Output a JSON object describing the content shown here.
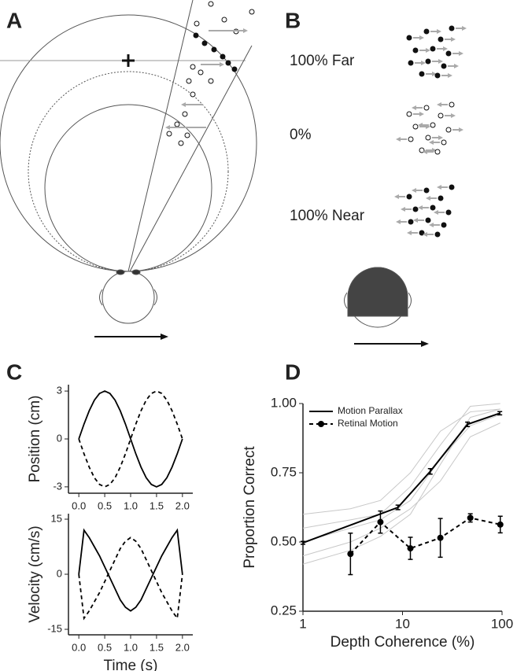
{
  "panel_labels": [
    "A",
    "B",
    "C",
    "D"
  ],
  "panel_b": {
    "conditions": [
      "100% Far",
      "0%",
      "100% Near"
    ]
  },
  "chart_data": [
    {
      "type": "line",
      "ylabel": "Position (cm)",
      "x": [
        0,
        0.1,
        0.2,
        0.3,
        0.4,
        0.5,
        0.6,
        0.7,
        0.8,
        0.9,
        1.0,
        1.1,
        1.2,
        1.3,
        1.4,
        1.5,
        1.6,
        1.7,
        1.8,
        1.9,
        2.0
      ],
      "series": [
        {
          "color": "#000000",
          "dash": "solid",
          "values": [
            0,
            0.93,
            1.76,
            2.43,
            2.85,
            3,
            2.85,
            2.43,
            1.76,
            0.93,
            0,
            -0.93,
            -1.76,
            -2.43,
            -2.85,
            -3,
            -2.85,
            -2.43,
            -1.76,
            -0.93,
            0
          ]
        },
        {
          "color": "#000000",
          "dash": "dashed",
          "values": [
            0,
            -0.93,
            -1.76,
            -2.43,
            -2.85,
            -3,
            -2.85,
            -2.43,
            -1.76,
            -0.93,
            0,
            0.93,
            1.76,
            2.43,
            2.85,
            3,
            2.85,
            2.43,
            1.76,
            0.93,
            0
          ]
        }
      ],
      "xlim": [
        -0.2,
        2.2
      ],
      "xticks": [
        {
          "value": 0,
          "label": "0.0"
        },
        {
          "value": 0.5,
          "label": "0.5"
        },
        {
          "value": 1,
          "label": "1.0"
        },
        {
          "value": 1.5,
          "label": "1.5"
        },
        {
          "value": 2,
          "label": "2.0"
        }
      ],
      "ylim": [
        -3.4,
        3.4
      ],
      "yticks": [
        -3,
        0,
        3
      ]
    },
    {
      "type": "line",
      "ylabel": "Velocity (cm/s)",
      "xlabel": "Time (s)",
      "x": [
        0,
        0.1,
        0.2,
        0.3,
        0.4,
        0.5,
        0.6,
        0.7,
        0.8,
        0.9,
        1.0,
        1.1,
        1.2,
        1.3,
        1.4,
        1.5,
        1.6,
        1.7,
        1.8,
        1.9,
        2.0
      ],
      "series": [
        {
          "color": "#000000",
          "dash": "solid",
          "values": [
            0,
            12,
            10,
            7.5,
            5,
            2,
            -1,
            -4,
            -7,
            -9,
            -10,
            -9,
            -7,
            -4,
            -1,
            2,
            5,
            7.5,
            10,
            12,
            0
          ]
        },
        {
          "color": "#000000",
          "dash": "dashed",
          "values": [
            0,
            -12,
            -10,
            -7.5,
            -5,
            -2,
            1,
            4,
            7,
            9,
            10,
            9,
            7,
            4,
            1,
            -2,
            -5,
            -7.5,
            -10,
            -12,
            0
          ]
        }
      ],
      "xlim": [
        -0.2,
        2.2
      ],
      "xticks": [
        {
          "value": 0,
          "label": "0.0"
        },
        {
          "value": 0.5,
          "label": "0.5"
        },
        {
          "value": 1,
          "label": "1.0"
        },
        {
          "value": 1.5,
          "label": "1.5"
        },
        {
          "value": 2,
          "label": "2.0"
        }
      ],
      "ylim": [
        -16.5,
        16.5
      ],
      "yticks": [
        -15,
        0,
        15
      ]
    },
    {
      "type": "line",
      "ylabel": "Proportion Correct",
      "xlabel": "Depth Coherence (%)",
      "xscale": "log",
      "xlim": [
        1,
        100
      ],
      "xticks": [
        1,
        10,
        100
      ],
      "ylim": [
        0.25,
        1.0
      ],
      "yticks": [
        {
          "value": 0.25,
          "label": "0.25"
        },
        {
          "value": 0.5,
          "label": "0.50"
        },
        {
          "value": 0.75,
          "label": "0.75"
        },
        {
          "value": 1.0,
          "label": "1.00"
        }
      ],
      "legend": "upper left",
      "series": [
        {
          "color": "#c8c8c8",
          "dash": "solid",
          "x": [
            1,
            3,
            6,
            12,
            24,
            48,
            96
          ],
          "values": [
            0.42,
            0.47,
            0.52,
            0.6,
            0.78,
            0.95,
            0.98
          ]
        },
        {
          "color": "#c8c8c8",
          "dash": "solid",
          "x": [
            1,
            3,
            6,
            12,
            24,
            48,
            96
          ],
          "values": [
            0.5,
            0.55,
            0.58,
            0.65,
            0.8,
            0.92,
            0.96
          ]
        },
        {
          "color": "#c8c8c8",
          "dash": "solid",
          "x": [
            1,
            3,
            6,
            12,
            24,
            48,
            96
          ],
          "values": [
            0.55,
            0.58,
            0.6,
            0.7,
            0.85,
            0.99,
            1.0
          ]
        },
        {
          "color": "#c8c8c8",
          "dash": "solid",
          "x": [
            1,
            3,
            6,
            12,
            24,
            48,
            96
          ],
          "values": [
            0.45,
            0.5,
            0.55,
            0.62,
            0.72,
            0.88,
            0.93
          ]
        },
        {
          "color": "#c8c8c8",
          "dash": "solid",
          "x": [
            1,
            3,
            6,
            12,
            24,
            48,
            96
          ],
          "values": [
            0.6,
            0.62,
            0.65,
            0.75,
            0.9,
            0.97,
            0.98
          ]
        },
        {
          "name": "Motion Parallax",
          "color": "#000000",
          "dash": "solid",
          "x": [
            1,
            9,
            19,
            45,
            95
          ],
          "values": [
            0.497,
            0.625,
            0.755,
            0.925,
            0.965
          ],
          "errors": [
            0.005,
            0.008,
            0.01,
            0.008,
            0.006
          ]
        },
        {
          "name": "Retinal Motion",
          "color": "#000000",
          "dash": "dashed",
          "marker": "circle",
          "x": [
            3,
            6,
            12,
            24,
            48,
            96
          ],
          "values": [
            0.457,
            0.572,
            0.477,
            0.515,
            0.587,
            0.563
          ],
          "errors": [
            0.075,
            0.04,
            0.04,
            0.07,
            0.015,
            0.03
          ]
        }
      ]
    }
  ]
}
